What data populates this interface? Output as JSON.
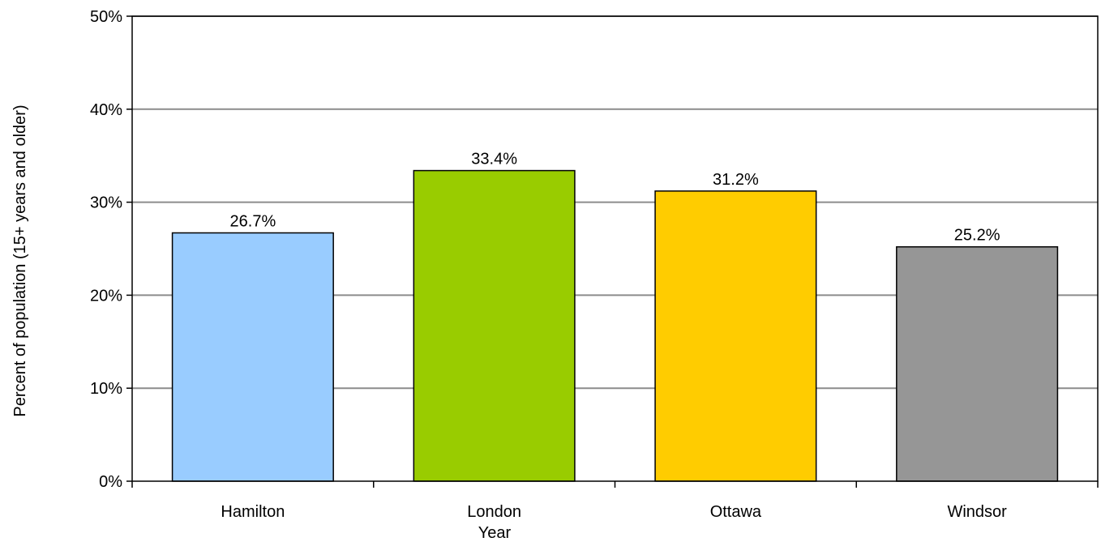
{
  "chart_data": {
    "type": "bar",
    "categories": [
      "Hamilton",
      "London",
      "Ottawa",
      "Windsor"
    ],
    "values": [
      26.7,
      33.4,
      31.2,
      25.2
    ],
    "data_labels": [
      "26.7%",
      "33.4%",
      "31.2%",
      "25.2%"
    ],
    "colors": [
      "#99ccff",
      "#99cc00",
      "#ffcc00",
      "#969696"
    ],
    "title": "",
    "xlabel": "Year",
    "ylabel": "Percent of population (15+ years and older)",
    "ylim": [
      0,
      50
    ],
    "y_ticks": [
      0,
      10,
      20,
      30,
      40,
      50
    ],
    "y_tick_labels": [
      "0%",
      "10%",
      "20%",
      "30%",
      "40%",
      "50%"
    ],
    "grid": true,
    "legend": "none"
  }
}
